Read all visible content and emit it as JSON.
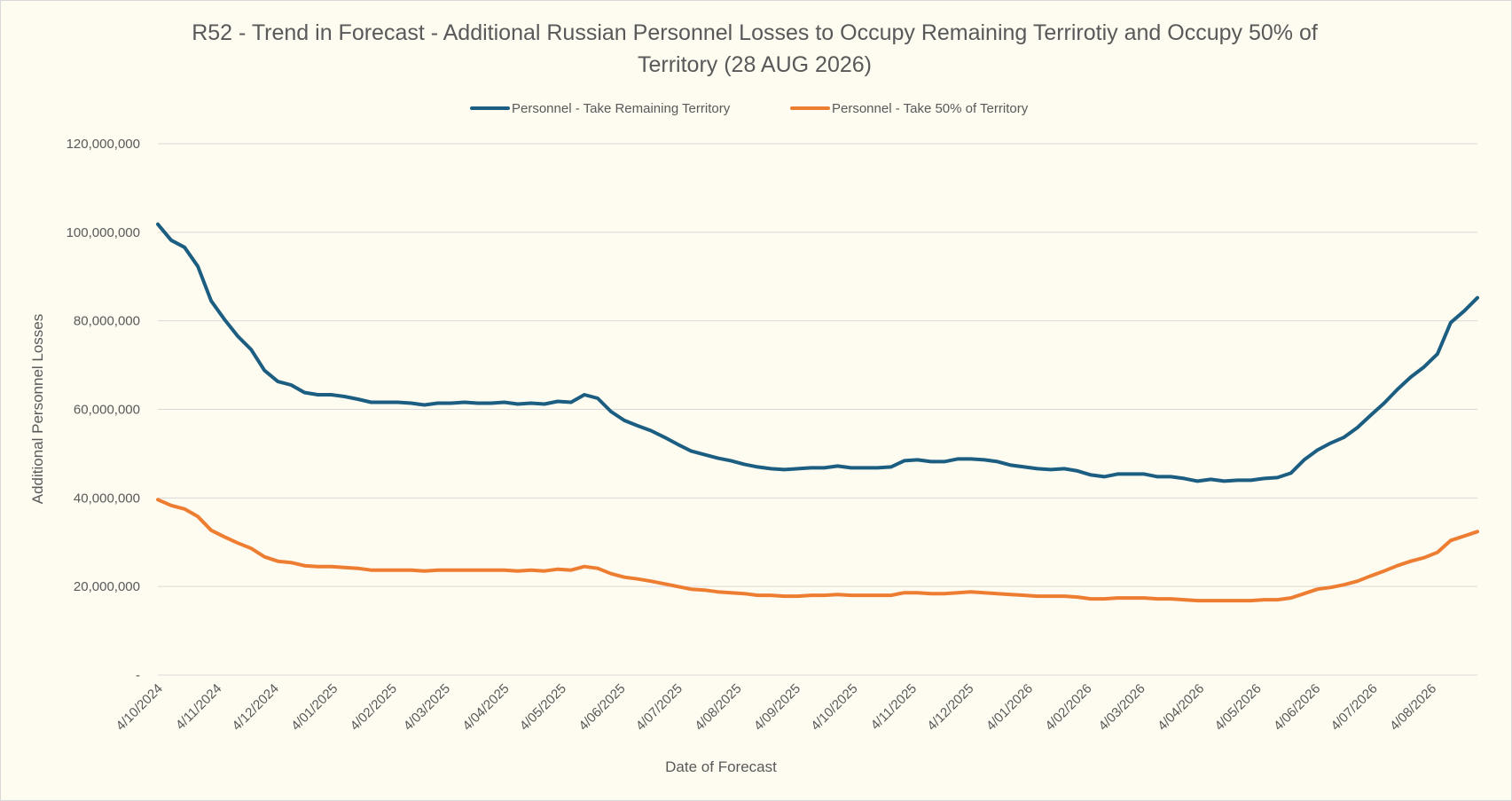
{
  "chart_data": {
    "type": "line",
    "title": "R52 - Trend in Forecast - Additional Russian Personnel Losses to Occupy Remaining Terrirotiy and Occupy 50% of Territory  (28 AUG 2026)",
    "title_lines": [
      "R52 - Trend in Forecast - Additional Russian Personnel Losses to Occupy Remaining Terrirotiy and Occupy 50% of",
      "Territory  (28 AUG 2026)"
    ],
    "xlabel": "Date of Forecast",
    "ylabel": "Additional Personnel Losses",
    "ylim": [
      0,
      120000000
    ],
    "yticks": [
      0,
      20000000,
      40000000,
      60000000,
      80000000,
      100000000,
      120000000
    ],
    "ytick_labels": [
      "-",
      "20,000,000",
      "40,000,000",
      "60,000,000",
      "80,000,000",
      "100,000,000",
      "120,000,000"
    ],
    "xlim": [
      "2024-10-04",
      "2026-08-28"
    ],
    "x_tick_dates": [
      "2024-10-04",
      "2024-11-04",
      "2024-12-04",
      "2025-01-04",
      "2025-02-04",
      "2025-03-04",
      "2025-04-04",
      "2025-05-04",
      "2025-06-04",
      "2025-07-04",
      "2025-08-04",
      "2025-09-04",
      "2025-10-04",
      "2025-11-04",
      "2025-12-04",
      "2026-01-04",
      "2026-02-04",
      "2026-03-04",
      "2026-04-04",
      "2026-05-04",
      "2026-06-04",
      "2026-07-04",
      "2026-08-04"
    ],
    "x_tick_labels": [
      "4/10/2024",
      "4/11/2024",
      "4/12/2024",
      "4/01/2025",
      "4/02/2025",
      "4/03/2025",
      "4/04/2025",
      "4/05/2025",
      "4/06/2025",
      "4/07/2025",
      "4/08/2025",
      "4/09/2025",
      "4/10/2025",
      "4/11/2025",
      "4/12/2025",
      "4/01/2026",
      "4/02/2026",
      "4/03/2026",
      "4/04/2026",
      "4/05/2026",
      "4/06/2026",
      "4/07/2026",
      "4/08/2026"
    ],
    "grid": true,
    "legend_position": "top",
    "x": [
      "2024-10-04",
      "2024-10-11",
      "2024-10-18",
      "2024-10-25",
      "2024-11-01",
      "2024-11-08",
      "2024-11-15",
      "2024-11-22",
      "2024-11-29",
      "2024-12-06",
      "2024-12-13",
      "2024-12-20",
      "2024-12-27",
      "2025-01-03",
      "2025-01-10",
      "2025-01-17",
      "2025-01-24",
      "2025-01-31",
      "2025-02-07",
      "2025-02-14",
      "2025-02-21",
      "2025-02-28",
      "2025-03-07",
      "2025-03-14",
      "2025-03-21",
      "2025-03-28",
      "2025-04-04",
      "2025-04-11",
      "2025-04-18",
      "2025-04-25",
      "2025-05-02",
      "2025-05-09",
      "2025-05-16",
      "2025-05-23",
      "2025-05-30",
      "2025-06-06",
      "2025-06-13",
      "2025-06-20",
      "2025-06-27",
      "2025-07-04",
      "2025-07-11",
      "2025-07-18",
      "2025-07-25",
      "2025-08-01",
      "2025-08-08",
      "2025-08-15",
      "2025-08-22",
      "2025-08-29",
      "2025-09-05",
      "2025-09-12",
      "2025-09-19",
      "2025-09-26",
      "2025-10-03",
      "2025-10-10",
      "2025-10-17",
      "2025-10-24",
      "2025-10-31",
      "2025-11-07",
      "2025-11-14",
      "2025-11-21",
      "2025-11-28",
      "2025-12-05",
      "2025-12-12",
      "2025-12-19",
      "2025-12-26",
      "2026-01-02",
      "2026-01-09",
      "2026-01-16",
      "2026-01-23",
      "2026-01-30",
      "2026-02-06",
      "2026-02-13",
      "2026-02-20",
      "2026-02-27",
      "2026-03-06",
      "2026-03-13",
      "2026-03-20",
      "2026-03-27",
      "2026-04-03",
      "2026-04-10",
      "2026-04-17",
      "2026-04-24",
      "2026-05-01",
      "2026-05-08",
      "2026-05-15",
      "2026-05-22",
      "2026-05-29",
      "2026-06-05",
      "2026-06-12",
      "2026-06-19",
      "2026-06-26",
      "2026-07-03",
      "2026-07-10",
      "2026-07-17",
      "2026-07-24",
      "2026-07-31",
      "2026-08-07",
      "2026-08-14",
      "2026-08-21",
      "2026-08-28"
    ],
    "series": [
      {
        "name": "Personnel - Take Remaining Territory",
        "color": "#1b5e82",
        "values": [
          101800000,
          98200000,
          96600000,
          92300000,
          84500000,
          80300000,
          76500000,
          73500000,
          68800000,
          66300000,
          65500000,
          63800000,
          63300000,
          63300000,
          62900000,
          62300000,
          61600000,
          61600000,
          61600000,
          61400000,
          61000000,
          61400000,
          61400000,
          61600000,
          61400000,
          61400000,
          61600000,
          61200000,
          61400000,
          61200000,
          61800000,
          61600000,
          63300000,
          62500000,
          59500000,
          57500000,
          56300000,
          55200000,
          53700000,
          52100000,
          50600000,
          49800000,
          49000000,
          48400000,
          47600000,
          47000000,
          46600000,
          46400000,
          46600000,
          46800000,
          46800000,
          47200000,
          46800000,
          46800000,
          46800000,
          47000000,
          48400000,
          48600000,
          48200000,
          48200000,
          48800000,
          48800000,
          48600000,
          48200000,
          47400000,
          47000000,
          46600000,
          46400000,
          46600000,
          46100000,
          45200000,
          44800000,
          45400000,
          45400000,
          45400000,
          44800000,
          44800000,
          44400000,
          43800000,
          44200000,
          43800000,
          44000000,
          44000000,
          44400000,
          44600000,
          45600000,
          48600000,
          50800000,
          52400000,
          53700000,
          55900000,
          58700000,
          61400000,
          64500000,
          67300000,
          69600000,
          72500000,
          79600000,
          82200000,
          85200000
        ]
      },
      {
        "name": "Personnel - Take 50% of Territory",
        "color": "#ed7d31",
        "values": [
          39600000,
          38300000,
          37500000,
          35800000,
          32700000,
          31200000,
          29800000,
          28600000,
          26700000,
          25700000,
          25400000,
          24700000,
          24500000,
          24500000,
          24300000,
          24100000,
          23700000,
          23700000,
          23700000,
          23700000,
          23500000,
          23700000,
          23700000,
          23700000,
          23700000,
          23700000,
          23700000,
          23500000,
          23700000,
          23500000,
          23900000,
          23700000,
          24500000,
          24100000,
          22900000,
          22100000,
          21700000,
          21200000,
          20600000,
          20000000,
          19400000,
          19200000,
          18800000,
          18600000,
          18400000,
          18000000,
          18000000,
          17800000,
          17800000,
          18000000,
          18000000,
          18200000,
          18000000,
          18000000,
          18000000,
          18000000,
          18600000,
          18600000,
          18400000,
          18400000,
          18600000,
          18800000,
          18600000,
          18400000,
          18200000,
          18000000,
          17800000,
          17800000,
          17800000,
          17600000,
          17200000,
          17200000,
          17400000,
          17400000,
          17400000,
          17200000,
          17200000,
          17000000,
          16800000,
          16800000,
          16800000,
          16800000,
          16800000,
          17000000,
          17000000,
          17400000,
          18400000,
          19400000,
          19800000,
          20400000,
          21200000,
          22400000,
          23500000,
          24700000,
          25700000,
          26500000,
          27700000,
          30400000,
          31400000,
          32400000
        ]
      }
    ]
  }
}
